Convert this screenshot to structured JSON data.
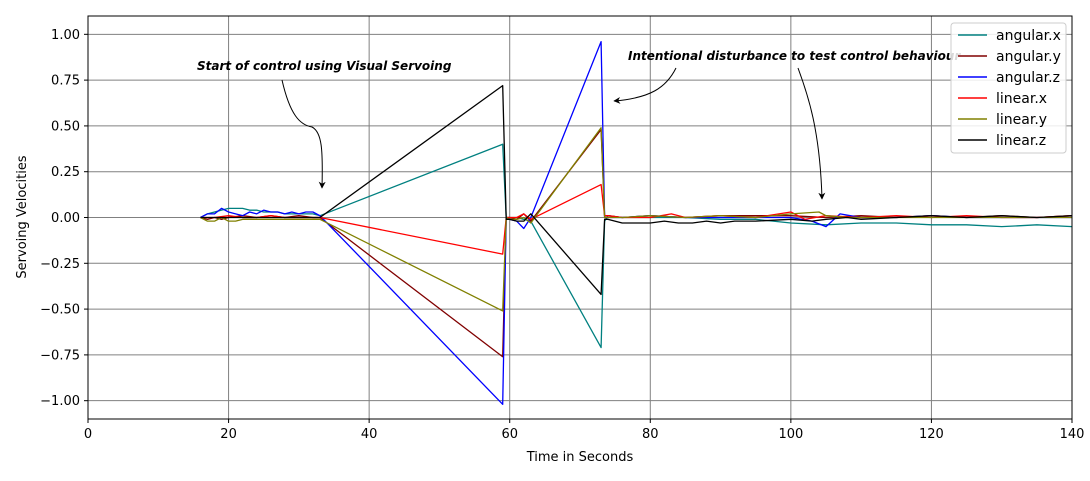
{
  "chart_data": {
    "type": "line",
    "title": "",
    "xlabel": "Time in Seconds",
    "ylabel": "Servoing Velocities",
    "xlim": [
      0,
      140
    ],
    "ylim": [
      -1.1,
      1.1
    ],
    "grid": true,
    "legend_position": "top-right",
    "x_ticks": [
      0,
      20,
      40,
      60,
      80,
      100,
      120,
      140
    ],
    "x_tick_labels": [
      "0",
      "20",
      "40",
      "60",
      "80",
      "100",
      "120",
      "140"
    ],
    "y_ticks": [
      1.0,
      0.75,
      0.5,
      0.25,
      0.0,
      -0.25,
      -0.5,
      -0.75,
      -1.0
    ],
    "y_tick_labels": [
      "1.00",
      "0.75",
      "0.50",
      "0.25",
      "0.00",
      "−0.25",
      "−0.50",
      "−0.75",
      "−1.00"
    ],
    "annotations": [
      {
        "text": "Start of control using Visual Servoing",
        "target": [
          33,
          0.14
        ]
      },
      {
        "text": "Intentional disturbance to test control behaviour",
        "target": [
          74,
          0.63
        ]
      },
      {
        "text": "",
        "target": [
          104.5,
          0.09
        ]
      }
    ],
    "series": [
      {
        "name": "angular.x",
        "color": "#008080",
        "x": [
          16,
          17,
          18,
          19,
          20,
          21,
          22,
          23,
          24,
          25,
          26,
          27,
          28,
          29,
          30,
          31,
          32,
          33,
          59,
          59.5,
          60,
          61,
          62,
          63,
          73,
          73.5,
          74,
          76,
          80,
          85,
          90,
          95,
          100,
          105,
          110,
          115,
          120,
          125,
          130,
          135,
          140
        ],
        "y": [
          0.0,
          0.02,
          0.03,
          0.04,
          0.05,
          0.05,
          0.05,
          0.04,
          0.04,
          0.03,
          0.03,
          0.03,
          0.02,
          0.02,
          0.02,
          0.02,
          0.02,
          0.01,
          0.4,
          0.0,
          0.0,
          0.0,
          -0.01,
          -0.02,
          -0.71,
          -0.02,
          0.01,
          0.0,
          0.0,
          0.0,
          -0.01,
          -0.01,
          -0.03,
          -0.04,
          -0.03,
          -0.03,
          -0.04,
          -0.04,
          -0.05,
          -0.04,
          -0.05
        ]
      },
      {
        "name": "angular.y",
        "color": "#800000",
        "x": [
          16,
          17,
          18,
          19,
          20,
          22,
          24,
          26,
          28,
          30,
          32,
          33,
          59,
          59.5,
          60,
          61,
          62,
          63,
          73,
          73.5,
          74,
          76,
          80,
          85,
          90,
          95,
          100,
          105,
          110,
          115,
          120,
          125,
          130,
          135,
          140
        ],
        "y": [
          0.0,
          -0.01,
          0.0,
          -0.01,
          0.0,
          0.01,
          0.0,
          0.01,
          0.0,
          0.01,
          0.0,
          0.0,
          -0.76,
          0.0,
          0.0,
          -0.01,
          0.02,
          -0.02,
          0.48,
          0.01,
          0.01,
          0.0,
          0.01,
          0.0,
          0.01,
          0.01,
          0.01,
          0.0,
          0.01,
          0.0,
          0.01,
          0.0,
          0.01,
          0.0,
          0.01
        ]
      },
      {
        "name": "angular.z",
        "color": "#0000ff",
        "x": [
          16,
          17,
          18,
          19,
          20,
          21,
          22,
          23,
          24,
          25,
          26,
          27,
          28,
          29,
          30,
          31,
          32,
          33,
          59,
          59.5,
          60,
          61,
          62,
          63,
          73,
          73.5,
          74,
          76,
          80,
          85,
          90,
          95,
          100,
          103,
          105,
          107,
          110,
          115,
          120,
          125,
          130,
          135,
          140
        ],
        "y": [
          0.0,
          0.02,
          0.02,
          0.05,
          0.03,
          0.02,
          0.01,
          0.03,
          0.02,
          0.04,
          0.03,
          0.03,
          0.02,
          0.03,
          0.02,
          0.03,
          0.03,
          0.01,
          -1.02,
          0.0,
          -0.01,
          -0.02,
          -0.06,
          0.0,
          0.96,
          0.0,
          0.0,
          0.0,
          0.01,
          0.0,
          0.0,
          0.0,
          0.0,
          -0.02,
          -0.05,
          0.02,
          0.0,
          0.0,
          0.01,
          0.0,
          0.0,
          0.0,
          0.0
        ]
      },
      {
        "name": "linear.x",
        "color": "#ff0000",
        "x": [
          16,
          18,
          20,
          22,
          24,
          26,
          28,
          30,
          32,
          33,
          59,
          59.5,
          60,
          61,
          62,
          63,
          73,
          73.5,
          74,
          76,
          80,
          83,
          85,
          90,
          95,
          100,
          102,
          105,
          110,
          115,
          120,
          125,
          130,
          135,
          140
        ],
        "y": [
          0.0,
          0.0,
          0.01,
          0.0,
          0.0,
          0.01,
          0.0,
          0.0,
          0.0,
          0.0,
          -0.2,
          0.0,
          0.0,
          0.0,
          0.02,
          -0.01,
          0.18,
          0.01,
          0.01,
          0.0,
          0.0,
          0.02,
          0.0,
          0.01,
          0.0,
          0.03,
          -0.01,
          0.01,
          0.0,
          0.01,
          0.0,
          0.01,
          0.0,
          0.0,
          0.01
        ]
      },
      {
        "name": "linear.y",
        "color": "#808000",
        "x": [
          16,
          17,
          18,
          19,
          20,
          21,
          22,
          24,
          26,
          28,
          30,
          32,
          33,
          59,
          59.5,
          60,
          61,
          62,
          63,
          73,
          73.5,
          74,
          76,
          80,
          85,
          90,
          95,
          100,
          104,
          105,
          108,
          110,
          115,
          120,
          125,
          130,
          135,
          140
        ],
        "y": [
          0.0,
          -0.02,
          -0.02,
          0.0,
          -0.02,
          -0.02,
          -0.01,
          -0.01,
          -0.01,
          -0.01,
          -0.01,
          -0.01,
          -0.01,
          -0.51,
          0.0,
          -0.01,
          -0.01,
          0.0,
          -0.03,
          0.49,
          0.0,
          0.0,
          0.0,
          0.01,
          0.0,
          0.01,
          0.0,
          0.02,
          0.03,
          0.01,
          0.0,
          0.0,
          0.0,
          0.0,
          0.0,
          0.0,
          0.0,
          0.0
        ]
      },
      {
        "name": "linear.z",
        "color": "#000000",
        "x": [
          16,
          18,
          20,
          22,
          24,
          26,
          28,
          30,
          32,
          33,
          59,
          59.5,
          60,
          61,
          62,
          63,
          73,
          73.5,
          74,
          76,
          78,
          80,
          82,
          84,
          86,
          88,
          90,
          92,
          95,
          100,
          103,
          105,
          108,
          110,
          115,
          120,
          125,
          130,
          135,
          140
        ],
        "y": [
          0.0,
          0.0,
          0.0,
          0.0,
          0.0,
          0.0,
          0.0,
          0.0,
          0.0,
          0.0,
          0.72,
          -0.01,
          -0.01,
          -0.02,
          -0.02,
          0.02,
          -0.42,
          -0.01,
          -0.01,
          -0.03,
          -0.03,
          -0.03,
          -0.02,
          -0.03,
          -0.03,
          -0.02,
          -0.03,
          -0.02,
          -0.02,
          -0.01,
          -0.02,
          -0.01,
          0.0,
          -0.01,
          0.0,
          0.01,
          0.0,
          0.01,
          0.0,
          0.01
        ]
      }
    ]
  }
}
